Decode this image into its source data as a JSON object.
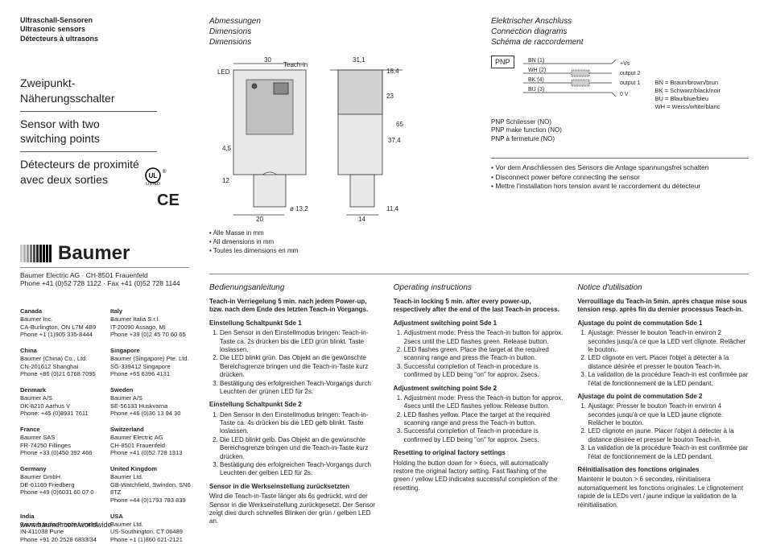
{
  "header": {
    "line1": "Ultraschall-Sensoren",
    "line2": "Ultrasonic sensors",
    "line3": "Détecteurs à ultrasons"
  },
  "product": {
    "de1": "Zweipunkt-",
    "de2": "Näherungsschalter",
    "en1": "Sensor with two",
    "en2": "switching points",
    "fr1": "Détecteurs de proximité",
    "fr2": "avec deux sorties"
  },
  "logo": {
    "text": "Baumer"
  },
  "mfr": {
    "line1": "Baumer Electric AG · CH-8501 Frauenfeld",
    "line2": "Phone +41 (0)52 728 1122 · Fax +41 (0)52 728 1144"
  },
  "offices": [
    {
      "country": "Canada",
      "name": "Baumer Inc.",
      "addr": "CA-Burlington, ON L7M 4B9",
      "phone": "Phone +1 (1)905 335-8444"
    },
    {
      "country": "Italy",
      "name": "Baumer Italia S.r.l.",
      "addr": "IT-20090 Assago, MI",
      "phone": "Phone +39 (0)2 45 70 60 65"
    },
    {
      "country": "China",
      "name": "Baumer (China) Co., Ltd.",
      "addr": "CN-201612 Shanghai",
      "phone": "Phone +86 (0)21 6768 7095"
    },
    {
      "country": "Singapore",
      "name": "Baumer (Singapore) Pte. Ltd.",
      "addr": "SG-339412 Singapore",
      "phone": "Phone +65 6396 4131"
    },
    {
      "country": "Denmark",
      "name": "Baumer A/S",
      "addr": "DK-8210 Aarhus V",
      "phone": "Phone: +45 (0)8931 7611"
    },
    {
      "country": "Sweden",
      "name": "Baumer A/S",
      "addr": "SE-56133 Huskvarna",
      "phone": "Phone +46 (0)36 13 94 30"
    },
    {
      "country": "France",
      "name": "Baumer SAS",
      "addr": "FR-74250 Fillinges",
      "phone": "Phone +33 (0)450 392 466"
    },
    {
      "country": "Switzerland",
      "name": "Baumer Electric AG",
      "addr": "CH-8501 Frauenfeld",
      "phone": "Phone +41 (0)52 728 1313"
    },
    {
      "country": "Germany",
      "name": "Baumer GmbH",
      "addr": "DE-61169 Friedberg",
      "phone": "Phone +49 (0)6031 60 07 0"
    },
    {
      "country": "United Kingdom",
      "name": "Baumer Ltd.",
      "addr": "GB-Watchfield, Swindon, SN6 8TZ",
      "phone": "Phone +44 (0)1793 783 839"
    },
    {
      "country": "India",
      "name": "Baumer India Private Limited",
      "addr": "IN-411038 Pune",
      "phone": "Phone +91 20 2528 6833/34"
    },
    {
      "country": "USA",
      "name": "Baumer Ltd.",
      "addr": "US-Southington, CT 06489",
      "phone": "Phone +1 (1)860 621-2121"
    }
  ],
  "url": "www.baumer.com/worldwide",
  "dimensions": {
    "head_de": "Abmessungen",
    "head_en": "Dimensions",
    "head_fr": "Dimensions",
    "labels": {
      "led": "LED",
      "teachin": "Teach-in",
      "d30": "30",
      "d31_1": "31,1",
      "d18_4": "18,4",
      "d23": "23",
      "d65": "65",
      "d4_5": "4,5",
      "d37_4": "37,4",
      "d12": "12",
      "d20": "20",
      "d13_2": "ø 13,2",
      "d11_4": "11,4",
      "d14": "14"
    },
    "notes": [
      "Alle Masse in mm",
      "All dimensions in mm",
      "Toutes les dimensions en mm"
    ]
  },
  "conn": {
    "head_de": "Elektrischer Anschluss",
    "head_en": "Connection diagrams",
    "head_fr": "Schéma de raccordement",
    "pnp": "PNP",
    "wires": [
      {
        "code": "BN (1)",
        "sig": "+Vs"
      },
      {
        "code": "WH (2)",
        "sig": "output 2"
      },
      {
        "code": "BK (4)",
        "sig": "output 1"
      },
      {
        "code": "BU (3)",
        "sig": "0 V"
      }
    ],
    "legend": [
      "BN = Braun/brown/brun",
      "BK = Schwarz/black/noir",
      "BU = Blau/blue/bleu",
      "WH = Weiss/white/blanc"
    ],
    "type_de": "PNP Schliesser (NO)",
    "type_en": "PNP make function (NO)",
    "type_fr": "PNP à fermeture (NO)",
    "safety": [
      "Vor dem Anschliessen des Sensors die Anlage spannungsfrei schalten",
      "Disconnect power before connecting the sensor",
      "Mettre l'installation hors tension avant le raccordement du détecteur"
    ]
  },
  "instr": {
    "de": {
      "head": "Bedienungsanleitung",
      "lock": "Teach-in Verriegelung  5 min. nach jedem Power-up, bzw. nach dem Ende des letzten Teach-in Vorgangs.",
      "sde1_h": "Einstellung Schaltpunkt Sde 1",
      "sde1_1": "Den Sensor in den Einstellmodus bringen: Teach-in-Taste ca. 2s drücken bis die LED grün blinkt. Taste loslassen.",
      "sde1_2": "Die LED blinkt grün. Das Objekt an die gewünschte Bereichsgrenze bringen und die Teach-in-Taste kurz drücken.",
      "sde1_3": "Bestätigung des erfolgreichen Teach-Vorgangs durch Leuchten der grünen LED für 2s.",
      "sde2_h": "Einstellung Schaltpunkt Sde 2",
      "sde2_1": "Den Sensor in den Einstellmodus bringen: Teach-in-Taste ca. 4s drücken bis die LED gelb blinkt. Taste loslassen.",
      "sde2_2": "Die LED blinkt gelb. Das Objekt an die gewünschte Bereichsgrenze bringen und die Teach-in-Taste kurz drücken.",
      "sde2_3": "Bestätigung des erfolgreichen Teach-Vorgangs durch Leuchten der gelben LED für 2s.",
      "reset_h": "Sensor in die Werkseinstellung zurücksetzten",
      "reset": "Wird die Teach-in-Taste länger als 6s gedrückt, wird der Sensor in die Werkseinstellung zurückgesetzt. Der Sensor zeigt dies durch schnelles Blinken der grün / gelben LED an."
    },
    "en": {
      "head": "Operating instructions",
      "lock": "Teach-in locking  5 min. after every power-up, respectively after the end of the last Teach-in process.",
      "sde1_h": "Adjustment switching point Sde 1",
      "sde1_1": "Adjustment mode: Press the Teach-in button for approx. 2secs until the LED flashes green. Release button.",
      "sde1_2": "LED flashes green. Place the target at the required scanning range and press the Teach-in button.",
      "sde1_3": "Successful completion of Teach-in procedure is confirmed by LED being \"on\" for approx. 2secs.",
      "sde2_h": "Adjustment switching point Sde 2",
      "sde2_1": "Adjustment mode: Press the Teach-in button for approx. 4secs until the LED flashes yellow. Release button.",
      "sde2_2": "LED flashes yellow. Place the target at the required scanning range and press the Teach-in button.",
      "sde2_3": "Successful completion of Teach-in procedure is confirmed by LED being \"on\" for approx. 2secs.",
      "reset_h": "Resetting to original factory settings",
      "reset": "Holding the button down for > 6secs, will automatically restore the original factory setting. Fast flashing of the green / yellow LED indicates successful completion of the resetting."
    },
    "fr": {
      "head": "Notice d'utilisation",
      "lock": "Verrouillage du Teach-in 5min. après chaque mise sous tension resp. après fin du dernier processus Teach-in.",
      "sde1_h": "Ajustage du point de commutation Sde 1",
      "sde1_1": "Ajustage: Presser le bouton Teach-in environ 2 secondes jusqu'à ce que la LED vert clignote. Relâcher le bouton.",
      "sde1_2": "LED clignote en vert. Placer l'objet à détecter à la distance désirée et presser le bouton Teach-in.",
      "sde1_3": "La validation de la procédure Teach-in est confirmée par l'état de fonctionnement de la LED pendant.",
      "sde2_h": "Ajustage du point de commutation Sde 2",
      "sde2_1": "Ajustage: Presser le bouton Teach-in environ 4 secondes jusqu'à ce que la LED jaune clignote. Relâcher le bouton.",
      "sde2_2": "LED clignote en jaune. Placer l'objet à détecter à la distance désirée et presser le bouton Teach-in.",
      "sde2_3": "La validation de la procédure Teach-in est confirmée par l'état de fonctionnement de la LED pendant.",
      "reset_h": "Réinitialisation des fonctions originales",
      "reset": "Maintenir le bouton > 6 secondes, réinitialisera automatiquement les fonctions originales. Le clignotement rapide de la LEDs vert / jaune indique la validation de la réinitialisation."
    }
  }
}
